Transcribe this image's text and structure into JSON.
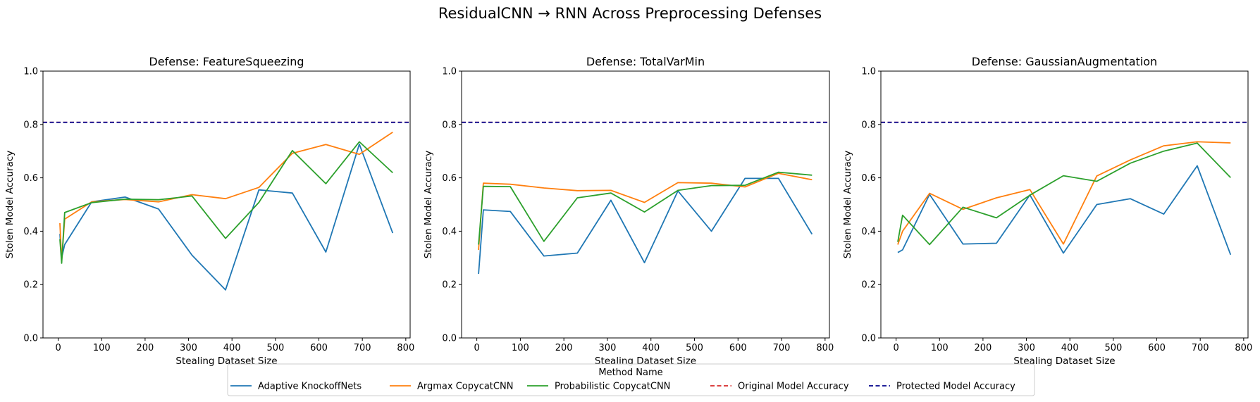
{
  "suptitle": "ResidualCNN → RNN Across Preprocessing Defenses",
  "chart_data": [
    {
      "type": "line",
      "title": "Defense: FeatureSqueezing",
      "xlabel": "Stealing Dataset Size",
      "ylabel": "Stolen Model Accuracy",
      "xlim": [
        -35,
        810
      ],
      "ylim": [
        0,
        1.0
      ],
      "xticks": [
        0,
        100,
        200,
        300,
        400,
        500,
        600,
        700,
        800
      ],
      "yticks": [
        0.0,
        0.2,
        0.4,
        0.6,
        0.8,
        1.0
      ],
      "ytick_labels": [
        "0.0",
        "0.2",
        "0.4",
        "0.6",
        "0.8",
        "1.0"
      ],
      "hlines": [
        {
          "name": "Original Model Accuracy",
          "y": 0.808
        },
        {
          "name": "Protected Model Accuracy",
          "y": 0.808
        }
      ],
      "series": [
        {
          "name": "Adaptive KnockoffNets",
          "x": [
            4,
            8,
            15,
            77,
            154,
            231,
            308,
            385,
            462,
            539,
            616,
            693,
            770
          ],
          "y": [
            0.39,
            0.3,
            0.35,
            0.51,
            0.528,
            0.483,
            0.31,
            0.18,
            0.555,
            0.543,
            0.322,
            0.726,
            0.393
          ]
        },
        {
          "name": "Argmax CopycatCNN",
          "x": [
            4,
            8,
            15,
            77,
            154,
            231,
            308,
            385,
            462,
            539,
            616,
            693,
            770
          ],
          "y": [
            0.43,
            0.29,
            0.445,
            0.51,
            0.519,
            0.51,
            0.537,
            0.522,
            0.564,
            0.692,
            0.725,
            0.688,
            0.771
          ]
        },
        {
          "name": "Probabilistic CopycatCNN",
          "x": [
            4,
            8,
            15,
            77,
            154,
            231,
            308,
            385,
            462,
            539,
            616,
            693,
            770
          ],
          "y": [
            0.37,
            0.28,
            0.47,
            0.507,
            0.52,
            0.518,
            0.532,
            0.373,
            0.508,
            0.702,
            0.578,
            0.735,
            0.619
          ]
        }
      ]
    },
    {
      "type": "line",
      "title": "Defense: TotalVarMin",
      "xlabel": "Stealing Dataset Size",
      "ylabel": "Stolen Model Accuracy",
      "xlim": [
        -35,
        810
      ],
      "ylim": [
        0,
        1.0
      ],
      "xticks": [
        0,
        100,
        200,
        300,
        400,
        500,
        600,
        700,
        800
      ],
      "yticks": [
        0.0,
        0.2,
        0.4,
        0.6,
        0.8,
        1.0
      ],
      "ytick_labels": [
        "0.0",
        "0.2",
        "0.4",
        "0.6",
        "0.8",
        "1.0"
      ],
      "hlines": [
        {
          "name": "Original Model Accuracy",
          "y": 0.808
        },
        {
          "name": "Protected Model Accuracy",
          "y": 0.808
        }
      ],
      "series": [
        {
          "name": "Adaptive KnockoffNets",
          "x": [
            4,
            15,
            77,
            154,
            231,
            308,
            385,
            462,
            539,
            616,
            693,
            770
          ],
          "y": [
            0.24,
            0.48,
            0.474,
            0.307,
            0.318,
            0.516,
            0.282,
            0.551,
            0.4,
            0.598,
            0.598,
            0.389
          ]
        },
        {
          "name": "Argmax CopycatCNN",
          "x": [
            4,
            15,
            77,
            154,
            231,
            308,
            385,
            462,
            539,
            616,
            693,
            770
          ],
          "y": [
            0.33,
            0.58,
            0.576,
            0.562,
            0.552,
            0.553,
            0.508,
            0.582,
            0.58,
            0.566,
            0.617,
            0.593
          ]
        },
        {
          "name": "Probabilistic CopycatCNN",
          "x": [
            4,
            15,
            77,
            154,
            231,
            308,
            385,
            462,
            539,
            616,
            693,
            770
          ],
          "y": [
            0.35,
            0.568,
            0.567,
            0.362,
            0.525,
            0.543,
            0.472,
            0.553,
            0.571,
            0.572,
            0.621,
            0.61
          ]
        }
      ]
    },
    {
      "type": "line",
      "title": "Defense: GaussianAugmentation",
      "xlabel": "Stealing Dataset Size",
      "ylabel": "Stolen Model Accuracy",
      "xlim": [
        -35,
        810
      ],
      "ylim": [
        0,
        1.0
      ],
      "xticks": [
        0,
        100,
        200,
        300,
        400,
        500,
        600,
        700,
        800
      ],
      "yticks": [
        0.0,
        0.2,
        0.4,
        0.6,
        0.8,
        1.0
      ],
      "ytick_labels": [
        "0.0",
        "0.2",
        "0.4",
        "0.6",
        "0.8",
        "1.0"
      ],
      "hlines": [
        {
          "name": "Original Model Accuracy",
          "y": 0.808
        },
        {
          "name": "Protected Model Accuracy",
          "y": 0.808
        }
      ],
      "series": [
        {
          "name": "Adaptive KnockoffNets",
          "x": [
            4,
            15,
            77,
            154,
            231,
            308,
            385,
            462,
            539,
            616,
            693,
            770
          ],
          "y": [
            0.32,
            0.33,
            0.538,
            0.352,
            0.355,
            0.536,
            0.318,
            0.5,
            0.522,
            0.464,
            0.645,
            0.312
          ]
        },
        {
          "name": "Argmax CopycatCNN",
          "x": [
            4,
            15,
            77,
            154,
            231,
            308,
            385,
            462,
            539,
            616,
            693,
            770
          ],
          "y": [
            0.35,
            0.4,
            0.542,
            0.482,
            0.525,
            0.556,
            0.352,
            0.607,
            0.667,
            0.72,
            0.735,
            0.731
          ]
        },
        {
          "name": "Probabilistic CopycatCNN",
          "x": [
            4,
            15,
            77,
            154,
            231,
            308,
            385,
            462,
            539,
            616,
            693,
            770
          ],
          "y": [
            0.36,
            0.46,
            0.35,
            0.49,
            0.45,
            0.535,
            0.608,
            0.587,
            0.655,
            0.7,
            0.73,
            0.601
          ]
        }
      ]
    }
  ],
  "legend": {
    "title": "Method Name",
    "entries": [
      {
        "label": "Adaptive KnockoffNets",
        "color": "#1f77b4",
        "dash": "solid"
      },
      {
        "label": "Argmax CopycatCNN",
        "color": "#ff7f0e",
        "dash": "solid"
      },
      {
        "label": "Probabilistic CopycatCNN",
        "color": "#2ca02c",
        "dash": "solid"
      },
      {
        "label": "Original Model Accuracy",
        "color": "#d62728",
        "dash": "dashed"
      },
      {
        "label": "Protected Model Accuracy",
        "color": "#00008b",
        "dash": "dashed"
      }
    ]
  },
  "colors": {
    "Adaptive KnockoffNets": "#1f77b4",
    "Argmax CopycatCNN": "#ff7f0e",
    "Probabilistic CopycatCNN": "#2ca02c",
    "Original Model Accuracy": "#d62728",
    "Protected Model Accuracy": "#00008b"
  }
}
